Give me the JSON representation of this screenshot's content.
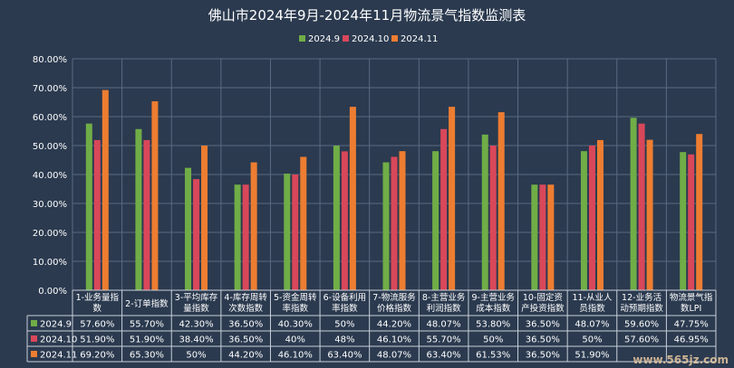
{
  "chart_data": {
    "type": "bar",
    "title": "佛山市2024年9月-2024年11月物流景气指数监测表",
    "categories": [
      [
        "1-业务量指",
        "数"
      ],
      [
        "2-订单指数"
      ],
      [
        "3-平均库存",
        "量指数"
      ],
      [
        "4-库存周转",
        "次数指数"
      ],
      [
        "5-资金周转",
        "率指数"
      ],
      [
        "6-设备利用",
        "率指数"
      ],
      [
        "7-物流服务",
        "价格指数"
      ],
      [
        "8-主营业务",
        "利润指数"
      ],
      [
        "9-主营业务",
        "成本指数"
      ],
      [
        "10-固定资",
        "产投资指数"
      ],
      [
        "11-从业人",
        "员指数"
      ],
      [
        "12-业务活",
        "动预期指数"
      ],
      [
        "物流景气指",
        "数LPI"
      ]
    ],
    "series": [
      {
        "name": "2024.9",
        "color": "#70ad47",
        "values": [
          57.6,
          55.7,
          42.3,
          36.5,
          40.3,
          50,
          44.2,
          48.07,
          53.8,
          36.5,
          48.07,
          59.6,
          47.75
        ],
        "labels": [
          "57.60%",
          "55.70%",
          "42.30%",
          "36.50%",
          "40.30%",
          "50%",
          "44.20%",
          "48.07%",
          "53.80%",
          "36.50%",
          "48.07%",
          "59.60%",
          "47.75%"
        ]
      },
      {
        "name": "2024.10",
        "color": "#d9475a",
        "values": [
          51.9,
          51.9,
          38.4,
          36.5,
          40,
          48,
          46.1,
          55.7,
          50,
          36.5,
          50,
          57.6,
          46.95
        ],
        "labels": [
          "51.90%",
          "51.90%",
          "38.40%",
          "36.50%",
          "40%",
          "48%",
          "46.10%",
          "55.70%",
          "50%",
          "36.50%",
          "50%",
          "57.60%",
          "46.95%"
        ]
      },
      {
        "name": "2024.11",
        "color": "#ed7d31",
        "values": [
          69.2,
          65.3,
          50,
          44.2,
          46.1,
          63.4,
          48.07,
          63.4,
          61.53,
          36.5,
          51.9,
          52,
          54
        ],
        "labels": [
          "69.20%",
          "65.30%",
          "50%",
          "44.20%",
          "46.10%",
          "63.40%",
          "48.07%",
          "63.40%",
          "61.53%",
          "36.50%",
          "51.90%",
          "",
          ""
        ]
      }
    ],
    "ylim": [
      0,
      80
    ],
    "yticks": [
      "0.00%",
      "10.00%",
      "20.00%",
      "30.00%",
      "40.00%",
      "50.00%",
      "60.00%",
      "70.00%",
      "80.00%"
    ],
    "grid": true,
    "legend": "top-center",
    "data_table": true
  },
  "watermark": "www.565jz.com"
}
